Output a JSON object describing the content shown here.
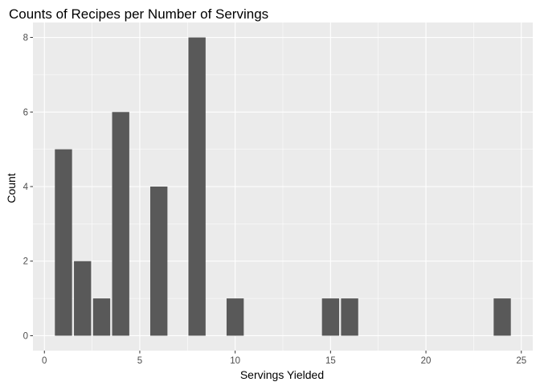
{
  "chart_data": {
    "type": "bar",
    "title": "Counts of Recipes per Number of Servings",
    "xlabel": "Servings Yielded",
    "ylabel": "Count",
    "x": [
      1,
      2,
      3,
      4,
      6,
      8,
      10,
      15,
      16,
      24
    ],
    "values": [
      5,
      2,
      1,
      6,
      4,
      8,
      1,
      1,
      1,
      1
    ],
    "xlim": [
      -0.6,
      25.6
    ],
    "ylim": [
      -0.4,
      8.4
    ],
    "xticks": [
      0,
      5,
      10,
      15,
      20,
      25
    ],
    "yticks": [
      0,
      2,
      4,
      6,
      8
    ],
    "bar_color": "#595959",
    "panel_background": "#ebebeb",
    "grid_color": "#ffffff",
    "grid": true,
    "legend": "none"
  }
}
